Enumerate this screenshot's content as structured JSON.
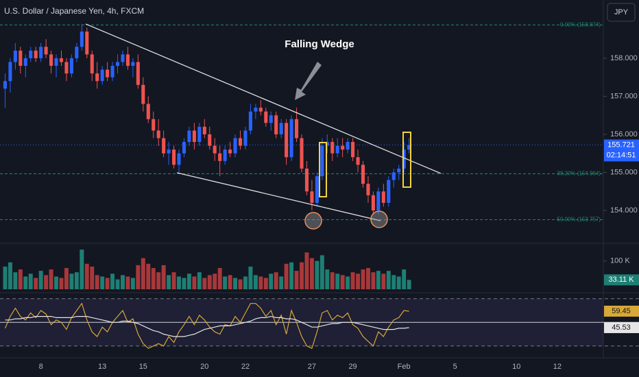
{
  "header": {
    "title": "U.S. Dollar / Japanese Yen, 4h, FXCM",
    "currency": "JPY"
  },
  "chart_data": [
    {
      "type": "candlestick",
      "annotation": "Falling Wedge",
      "countdown": "02:14:51",
      "xlim": [
        -1,
        117
      ],
      "xticks": [
        {
          "value": 7,
          "label": "8"
        },
        {
          "value": 19,
          "label": "13"
        },
        {
          "value": 27,
          "label": "15"
        },
        {
          "value": 39,
          "label": "20"
        },
        {
          "value": 47,
          "label": "22"
        },
        {
          "value": 60,
          "label": "27"
        },
        {
          "value": 68,
          "label": "29"
        },
        {
          "value": 78,
          "label": "Feb"
        },
        {
          "value": 88,
          "label": "5"
        },
        {
          "value": 100,
          "label": "10"
        },
        {
          "value": 108,
          "label": "12"
        }
      ],
      "ylim": [
        153.19,
        159.53
      ],
      "yticks": [
        {
          "value": 154,
          "label": "154.000"
        },
        {
          "value": 155,
          "label": "155.000"
        },
        {
          "value": 156,
          "label": "156.000"
        },
        {
          "value": 157,
          "label": "157.000"
        },
        {
          "value": 158,
          "label": "158.000"
        }
      ],
      "up_color": "#2962ff",
      "down_color": "#ef5350",
      "fib_color": "#1f8a70",
      "fib_levels": [
        {
          "label": "0.00% (158.874)",
          "price": 158.874
        },
        {
          "label": "38.20% (154.964)",
          "price": 154.964
        },
        {
          "label": "50.00% (153.757)",
          "price": 153.757
        }
      ],
      "candles": [
        [
          157.2,
          157.6,
          156.7,
          157.4
        ],
        [
          157.4,
          158.0,
          157.1,
          157.9
        ],
        [
          157.9,
          158.4,
          157.7,
          158.2
        ],
        [
          158.2,
          158.3,
          157.6,
          157.8
        ],
        [
          157.8,
          158.1,
          157.5,
          158.0
        ],
        [
          158.0,
          158.3,
          157.9,
          158.2
        ],
        [
          158.2,
          158.3,
          157.9,
          158.0
        ],
        [
          158.0,
          158.4,
          157.9,
          158.3
        ],
        [
          158.3,
          158.5,
          158.0,
          158.1
        ],
        [
          158.1,
          158.2,
          157.6,
          157.8
        ],
        [
          157.8,
          158.1,
          157.5,
          158.0
        ],
        [
          158.0,
          158.2,
          157.8,
          157.9
        ],
        [
          157.9,
          158.0,
          157.4,
          157.6
        ],
        [
          157.6,
          158.1,
          157.5,
          158.0
        ],
        [
          158.0,
          158.4,
          157.9,
          158.3
        ],
        [
          158.3,
          158.9,
          158.2,
          158.7
        ],
        [
          158.7,
          158.8,
          158.0,
          158.1
        ],
        [
          158.1,
          158.2,
          157.4,
          157.6
        ],
        [
          157.6,
          157.9,
          157.2,
          157.4
        ],
        [
          157.4,
          157.8,
          157.3,
          157.7
        ],
        [
          157.7,
          157.9,
          157.4,
          157.5
        ],
        [
          157.5,
          157.9,
          157.4,
          157.8
        ],
        [
          157.8,
          158.1,
          157.6,
          157.9
        ],
        [
          157.9,
          158.2,
          157.8,
          158.1
        ],
        [
          158.1,
          158.3,
          157.7,
          157.8
        ],
        [
          157.8,
          158.0,
          157.5,
          157.9
        ],
        [
          157.9,
          158.1,
          157.2,
          157.3
        ],
        [
          157.3,
          157.5,
          156.6,
          156.8
        ],
        [
          156.8,
          157.0,
          156.3,
          156.4
        ],
        [
          156.4,
          156.6,
          155.9,
          156.1
        ],
        [
          156.1,
          156.4,
          155.7,
          155.9
        ],
        [
          155.9,
          156.1,
          155.4,
          155.5
        ],
        [
          155.5,
          155.8,
          155.2,
          155.6
        ],
        [
          155.6,
          155.7,
          155.1,
          155.2
        ],
        [
          155.2,
          155.6,
          155.0,
          155.5
        ],
        [
          155.5,
          155.9,
          155.4,
          155.8
        ],
        [
          155.8,
          156.2,
          155.7,
          156.1
        ],
        [
          156.1,
          156.3,
          155.6,
          155.8
        ],
        [
          155.8,
          156.3,
          155.7,
          156.2
        ],
        [
          156.2,
          156.4,
          155.9,
          156.0
        ],
        [
          156.0,
          156.2,
          155.6,
          155.7
        ],
        [
          155.7,
          155.9,
          155.3,
          155.5
        ],
        [
          155.5,
          155.7,
          154.9,
          155.3
        ],
        [
          155.3,
          155.7,
          155.2,
          155.6
        ],
        [
          155.6,
          155.8,
          155.4,
          155.5
        ],
        [
          155.5,
          156.0,
          155.4,
          155.9
        ],
        [
          155.9,
          156.1,
          155.6,
          155.7
        ],
        [
          155.7,
          156.2,
          155.6,
          156.1
        ],
        [
          156.1,
          156.8,
          156.0,
          156.6
        ],
        [
          156.6,
          156.8,
          156.4,
          156.7
        ],
        [
          156.7,
          156.9,
          156.5,
          156.6
        ],
        [
          156.6,
          156.7,
          156.2,
          156.3
        ],
        [
          156.3,
          156.6,
          156.1,
          156.5
        ],
        [
          156.5,
          156.6,
          155.9,
          156.0
        ],
        [
          156.0,
          156.4,
          155.9,
          156.3
        ],
        [
          156.3,
          156.4,
          155.2,
          155.4
        ],
        [
          155.4,
          156.5,
          155.3,
          156.4
        ],
        [
          156.4,
          156.7,
          155.8,
          155.9
        ],
        [
          155.9,
          156.0,
          155.0,
          155.1
        ],
        [
          155.1,
          155.3,
          154.4,
          154.5
        ],
        [
          154.5,
          154.8,
          154.0,
          154.2
        ],
        [
          154.2,
          155.0,
          154.1,
          154.9
        ],
        [
          154.9,
          155.9,
          154.8,
          155.7
        ],
        [
          155.7,
          156.0,
          155.5,
          155.8
        ],
        [
          155.8,
          155.9,
          155.3,
          155.5
        ],
        [
          155.5,
          155.9,
          155.4,
          155.7
        ],
        [
          155.7,
          155.9,
          155.4,
          155.6
        ],
        [
          155.6,
          155.9,
          155.5,
          155.8
        ],
        [
          155.8,
          155.9,
          155.3,
          155.4
        ],
        [
          155.4,
          155.6,
          155.0,
          155.2
        ],
        [
          155.2,
          155.3,
          154.6,
          154.7
        ],
        [
          154.7,
          154.9,
          154.2,
          154.4
        ],
        [
          154.4,
          154.5,
          153.9,
          154.0
        ],
        [
          154.0,
          154.6,
          153.9,
          154.5
        ],
        [
          154.5,
          154.7,
          154.1,
          154.2
        ],
        [
          154.2,
          154.9,
          154.1,
          154.8
        ],
        [
          154.8,
          155.1,
          154.6,
          155.0
        ],
        [
          155.0,
          155.2,
          154.8,
          155.1
        ],
        [
          155.1,
          155.8,
          155.0,
          155.6
        ],
        [
          155.6,
          155.9,
          155.5,
          155.721
        ]
      ]
    },
    {
      "type": "bar",
      "ylim": [
        0,
        150000
      ],
      "yticks": [
        {
          "value": 100000,
          "label": "100 K"
        }
      ],
      "up_color": "#1e7f74",
      "down_color": "#a8383a",
      "last_label": "33.11 K",
      "values": [
        80000,
        95000,
        60000,
        70000,
        45000,
        55000,
        40000,
        65000,
        50000,
        70000,
        45000,
        40000,
        75000,
        55000,
        60000,
        140000,
        90000,
        80000,
        50000,
        45000,
        40000,
        55000,
        35000,
        50000,
        45000,
        40000,
        85000,
        110000,
        90000,
        75000,
        60000,
        85000,
        50000,
        60000,
        45000,
        40000,
        55000,
        45000,
        60000,
        40000,
        50000,
        55000,
        75000,
        45000,
        50000,
        40000,
        35000,
        45000,
        80000,
        50000,
        45000,
        40000,
        55000,
        60000,
        45000,
        90000,
        95000,
        65000,
        95000,
        130000,
        110000,
        100000,
        120000,
        70000,
        60000,
        55000,
        50000,
        45000,
        60000,
        55000,
        70000,
        75000,
        60000,
        65000,
        55000,
        65000,
        50000,
        45000,
        70000,
        33110
      ]
    },
    {
      "type": "line",
      "ylim": [
        20,
        74.5
      ],
      "levels": [
        70,
        50,
        30
      ],
      "series": [
        {
          "color": "#d9a935",
          "values": [
            45,
            55,
            62,
            55,
            52,
            58,
            54,
            60,
            57,
            48,
            52,
            50,
            44,
            54,
            60,
            66,
            52,
            42,
            38,
            46,
            42,
            50,
            55,
            60,
            50,
            53,
            40,
            32,
            28,
            30,
            32,
            30,
            38,
            33,
            42,
            48,
            55,
            48,
            56,
            52,
            46,
            42,
            40,
            48,
            47,
            55,
            50,
            58,
            66,
            66,
            62,
            55,
            60,
            48,
            56,
            40,
            60,
            50,
            38,
            30,
            28,
            42,
            58,
            60,
            52,
            56,
            54,
            58,
            48,
            45,
            38,
            34,
            30,
            42,
            38,
            46,
            52,
            54,
            60,
            59.45
          ]
        },
        {
          "color": "#e6e6e6",
          "values": [
            52,
            52,
            53,
            53,
            54,
            54,
            55,
            55,
            55,
            55,
            54,
            54,
            54,
            54,
            55,
            55,
            55,
            54,
            53,
            52,
            51,
            50,
            50,
            51,
            51,
            50,
            49,
            47,
            45,
            43,
            42,
            40,
            39,
            38,
            38,
            38,
            39,
            40,
            42,
            44,
            45,
            46,
            47,
            47,
            47,
            48,
            49,
            50,
            51,
            53,
            54,
            54,
            55,
            54,
            54,
            53,
            53,
            52,
            50,
            48,
            46,
            46,
            47,
            48,
            49,
            49,
            50,
            50,
            50,
            49,
            48,
            47,
            46,
            45,
            44,
            44,
            44,
            45,
            45,
            45.53
          ]
        }
      ]
    }
  ]
}
